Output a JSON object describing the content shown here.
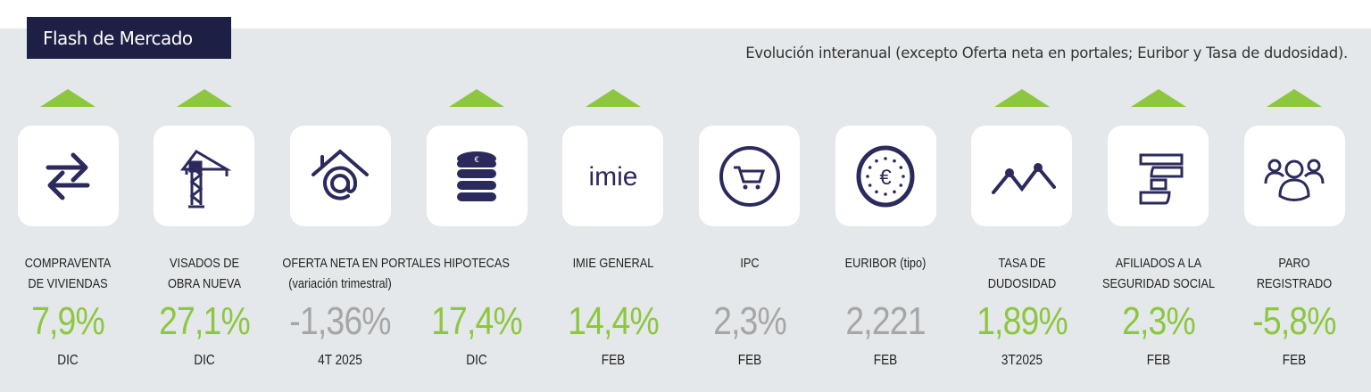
{
  "header": {
    "title": "Flash de Mercado",
    "subtitle": "Evolución interanual (excepto Oferta neta en portales; Euribor y Tasa de dudosidad)."
  },
  "colors": {
    "positive": "#8dc63f",
    "neutral": "#a6a6a6",
    "icon": "#2b2a5c"
  },
  "indicators": [
    {
      "icon": "exchange-arrows-icon",
      "label1": "COMPRAVENTA",
      "label2": "DE VIVIENDAS",
      "value": "7,9%",
      "period": "DIC",
      "trend": "up",
      "tone": "positive"
    },
    {
      "icon": "crane-icon",
      "label1": "VISADOS DE",
      "label2": "OBRA NUEVA",
      "value": "27,1%",
      "period": "DIC",
      "trend": "up",
      "tone": "positive"
    },
    {
      "icon": "house-at-icon",
      "label1": "OFERTA NETA EN PORTALES",
      "label2": "(variación trimestral)",
      "value": "-1,36%",
      "period": "4T 2025",
      "trend": "none",
      "tone": "neutral"
    },
    {
      "icon": "coin-stack-icon",
      "label1": "HIPOTECAS",
      "label2": "",
      "value": "17,4%",
      "period": "DIC",
      "trend": "up",
      "tone": "positive"
    },
    {
      "icon": "imie-logo-icon",
      "label1": "IMIE GENERAL",
      "label2": "",
      "value": "14,4%",
      "period": "FEB",
      "trend": "up",
      "tone": "positive",
      "logo": "imie"
    },
    {
      "icon": "shopping-cart-icon",
      "label1": "IPC",
      "label2": "",
      "value": "2,3%",
      "period": "FEB",
      "trend": "none",
      "tone": "neutral"
    },
    {
      "icon": "euro-coin-icon",
      "label1": "EURIBOR (tipo)",
      "label2": "",
      "value": "2,221",
      "period": "FEB",
      "trend": "none",
      "tone": "neutral"
    },
    {
      "icon": "line-peaks-icon",
      "label1": "TASA DE",
      "label2": "DUDOSIDAD",
      "value": "1,89%",
      "period": "3T2025",
      "trend": "up",
      "tone": "positive"
    },
    {
      "icon": "affiliates-bars-icon",
      "label1": "AFILIADOS A LA",
      "label2": "SEGURIDAD SOCIAL",
      "value": "2,3%",
      "period": "FEB",
      "trend": "up",
      "tone": "positive"
    },
    {
      "icon": "people-group-icon",
      "label1": "PARO",
      "label2": "REGISTRADO",
      "value": "-5,8%",
      "period": "FEB",
      "trend": "up",
      "tone": "positive"
    }
  ]
}
